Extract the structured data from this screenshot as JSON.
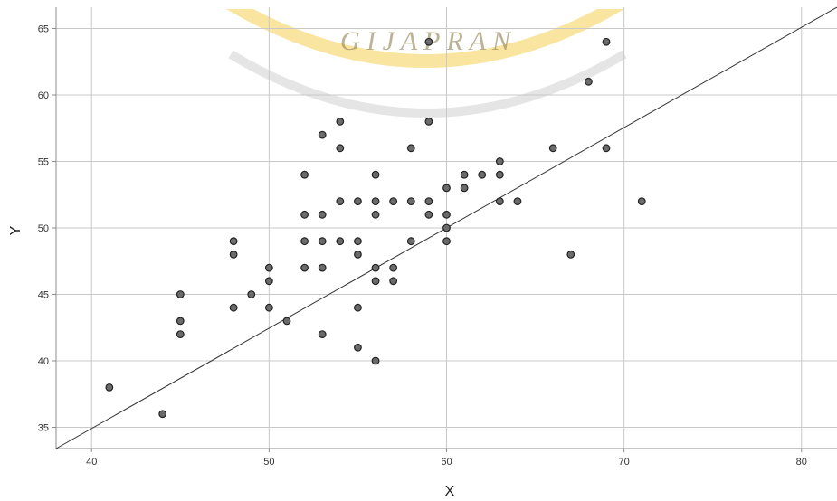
{
  "chart_data": {
    "type": "scatter",
    "title": "",
    "xlabel": "X",
    "ylabel": "Y",
    "xlim": [
      38,
      82
    ],
    "ylim": [
      33.4,
      66.6
    ],
    "x_ticks": [
      40,
      50,
      60,
      70,
      80
    ],
    "y_ticks": [
      35,
      40,
      45,
      50,
      55,
      60,
      65
    ],
    "grid": true,
    "legend": "none",
    "fit_line": {
      "x": [
        38,
        82
      ],
      "y": [
        33.4,
        66.6
      ]
    },
    "points": [
      {
        "x": 41,
        "y": 38
      },
      {
        "x": 44,
        "y": 36
      },
      {
        "x": 45,
        "y": 45
      },
      {
        "x": 45,
        "y": 43
      },
      {
        "x": 45,
        "y": 42
      },
      {
        "x": 48,
        "y": 49
      },
      {
        "x": 48,
        "y": 48
      },
      {
        "x": 48,
        "y": 44
      },
      {
        "x": 49,
        "y": 45
      },
      {
        "x": 50,
        "y": 47
      },
      {
        "x": 50,
        "y": 46
      },
      {
        "x": 50,
        "y": 44
      },
      {
        "x": 51,
        "y": 43
      },
      {
        "x": 52,
        "y": 54
      },
      {
        "x": 52,
        "y": 51
      },
      {
        "x": 52,
        "y": 49
      },
      {
        "x": 52,
        "y": 47
      },
      {
        "x": 53,
        "y": 57
      },
      {
        "x": 53,
        "y": 51
      },
      {
        "x": 53,
        "y": 49
      },
      {
        "x": 53,
        "y": 47
      },
      {
        "x": 53,
        "y": 42
      },
      {
        "x": 54,
        "y": 58
      },
      {
        "x": 54,
        "y": 56
      },
      {
        "x": 54,
        "y": 52
      },
      {
        "x": 54,
        "y": 49
      },
      {
        "x": 55,
        "y": 52
      },
      {
        "x": 55,
        "y": 49
      },
      {
        "x": 55,
        "y": 48
      },
      {
        "x": 55,
        "y": 44
      },
      {
        "x": 55,
        "y": 41
      },
      {
        "x": 56,
        "y": 54
      },
      {
        "x": 56,
        "y": 52
      },
      {
        "x": 56,
        "y": 51
      },
      {
        "x": 56,
        "y": 47
      },
      {
        "x": 56,
        "y": 46
      },
      {
        "x": 56,
        "y": 40
      },
      {
        "x": 57,
        "y": 52
      },
      {
        "x": 57,
        "y": 47
      },
      {
        "x": 57,
        "y": 46
      },
      {
        "x": 58,
        "y": 56
      },
      {
        "x": 58,
        "y": 52
      },
      {
        "x": 58,
        "y": 49
      },
      {
        "x": 59,
        "y": 64
      },
      {
        "x": 59,
        "y": 58
      },
      {
        "x": 59,
        "y": 52
      },
      {
        "x": 59,
        "y": 51
      },
      {
        "x": 60,
        "y": 53
      },
      {
        "x": 60,
        "y": 51
      },
      {
        "x": 60,
        "y": 50
      },
      {
        "x": 60,
        "y": 49
      },
      {
        "x": 61,
        "y": 54
      },
      {
        "x": 61,
        "y": 53
      },
      {
        "x": 62,
        "y": 54
      },
      {
        "x": 63,
        "y": 55
      },
      {
        "x": 63,
        "y": 54
      },
      {
        "x": 63,
        "y": 52
      },
      {
        "x": 64,
        "y": 52
      },
      {
        "x": 66,
        "y": 56
      },
      {
        "x": 67,
        "y": 48
      },
      {
        "x": 68,
        "y": 61
      },
      {
        "x": 69,
        "y": 64
      },
      {
        "x": 69,
        "y": 56
      },
      {
        "x": 71,
        "y": 52
      }
    ]
  },
  "watermark": {
    "text": "G I J A P R A N",
    "color": "#f5d76e"
  },
  "colors": {
    "point_fill": "#6b6b6b",
    "point_stroke": "#222222",
    "fit_line": "#333333",
    "grid": "#c8c8c8",
    "axis": "#8c8c8c"
  }
}
